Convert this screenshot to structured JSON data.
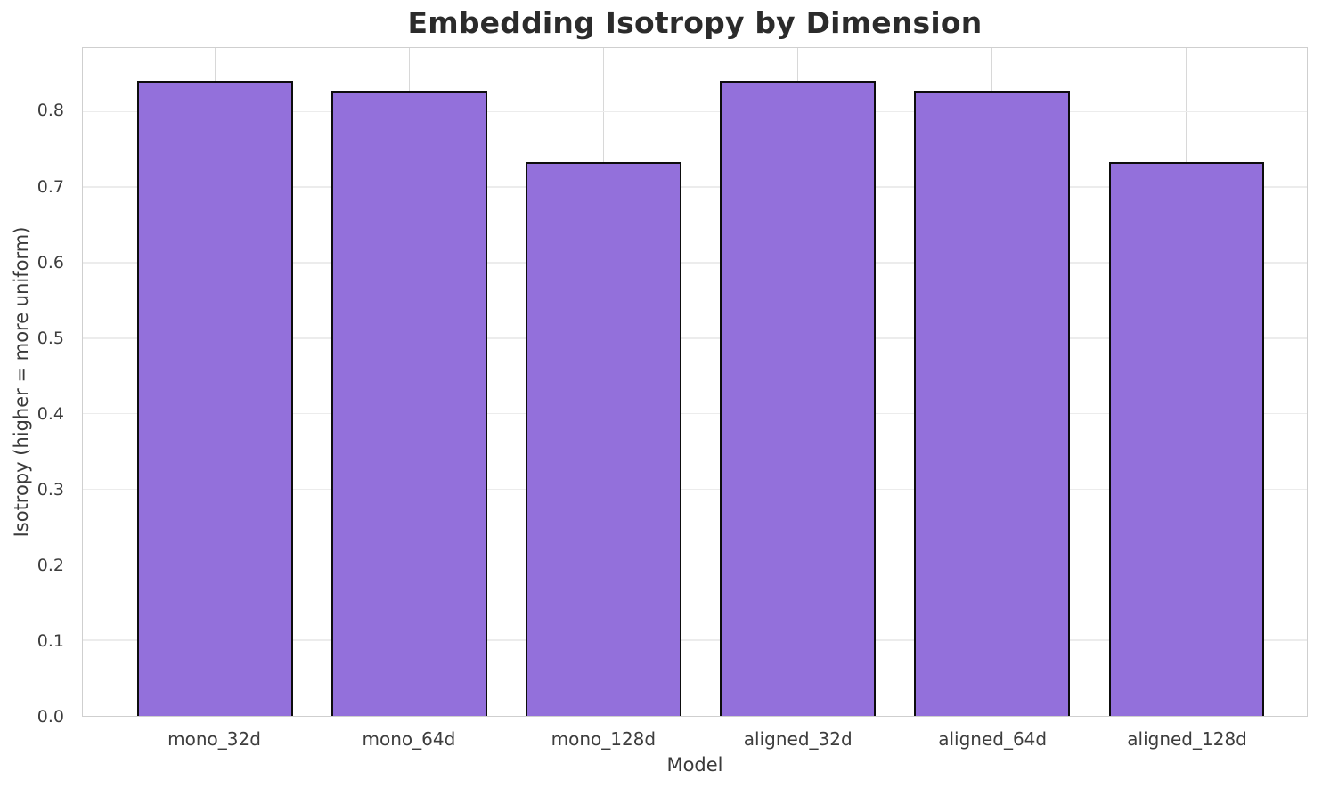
{
  "chart_data": {
    "type": "bar",
    "title": "Embedding Isotropy by Dimension",
    "xlabel": "Model",
    "ylabel": "Isotropy (higher = more uniform)",
    "categories": [
      "mono_32d",
      "mono_64d",
      "mono_128d",
      "aligned_32d",
      "aligned_64d",
      "aligned_128d"
    ],
    "values": [
      0.84,
      0.827,
      0.733,
      0.84,
      0.827,
      0.733
    ],
    "ylim": [
      0,
      0.884
    ],
    "yticks": [
      0.0,
      0.1,
      0.2,
      0.3,
      0.4,
      0.5,
      0.6,
      0.7,
      0.8
    ],
    "ytick_format_decimals": 1,
    "xlim": [
      -0.68,
      5.62
    ],
    "bar_width_data_units": 0.8,
    "grid": true,
    "legend_position": "none",
    "colors": {
      "bar_fill": "#9370DB",
      "bar_edge": "#0d0d0d",
      "grid_horizontal": "#ececec",
      "grid_vertical": "#d8d8d8",
      "spine": "#cfcfcf",
      "title_text": "#2b2b2b",
      "tick_text": "#3d3d3d",
      "axis_label_text": "#3a3a3a",
      "background": "#ffffff"
    }
  }
}
